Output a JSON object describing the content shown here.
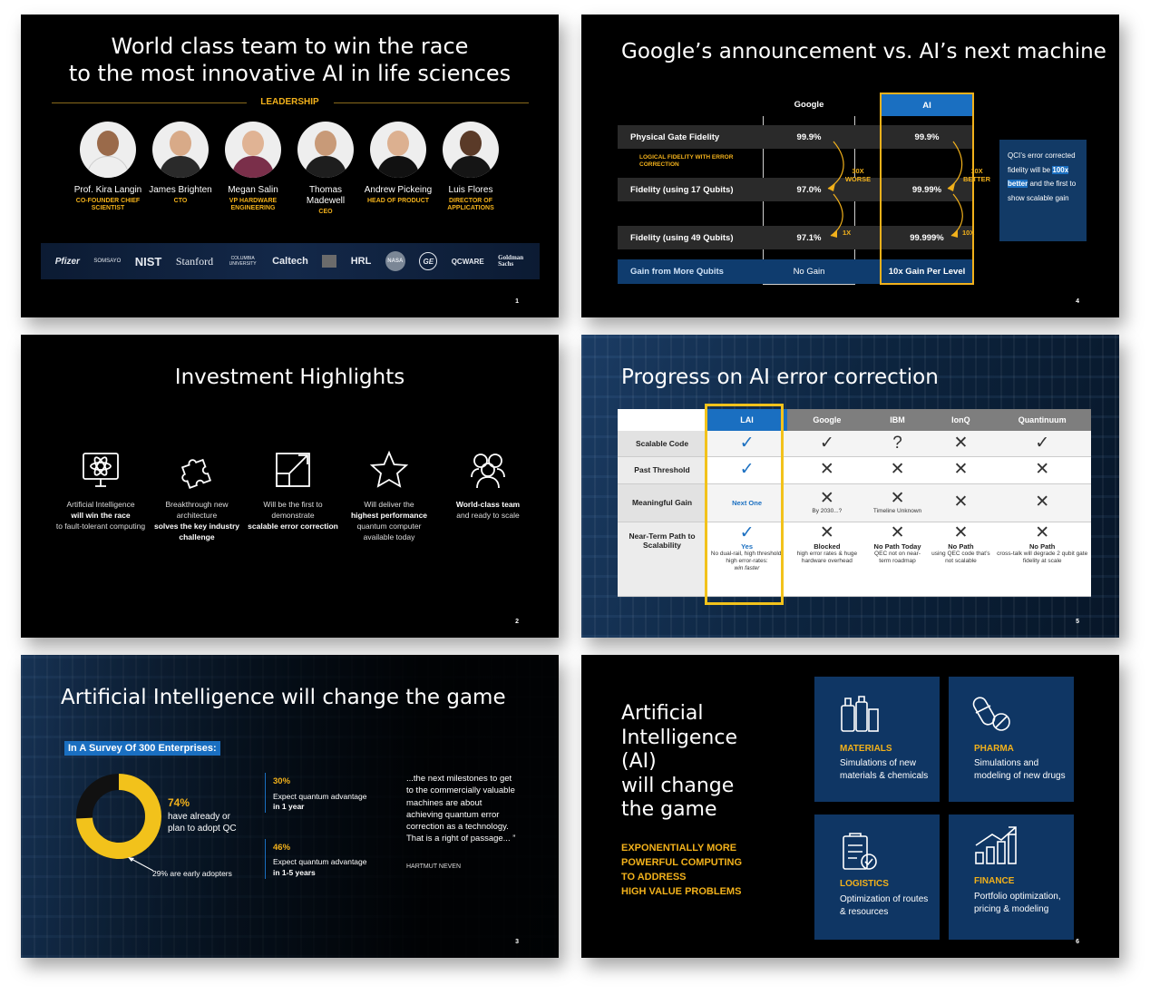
{
  "slide1": {
    "title_line1": "World class team to win the race",
    "title_line2": "to the most innovative AI in life sciences",
    "section": "LEADERSHIP",
    "people": [
      {
        "name": "Prof. Kira Langin",
        "role": "CO-FOUNDER CHIEF SCIENTIST"
      },
      {
        "name": "James Brighten",
        "role": "CTO"
      },
      {
        "name": "Megan Salin",
        "role": "VP HARDWARE ENGINEERING"
      },
      {
        "name": "Thomas Madewell",
        "role": "CEO"
      },
      {
        "name": "Andrew Pickeing",
        "role": "HEAD OF PRODUCT"
      },
      {
        "name": "Luis Flores",
        "role": "DIRECTOR OF APPLICATIONS"
      }
    ],
    "logos": [
      "Pfizer",
      "SOMSAYO",
      "NIST",
      "Stanford",
      "COLUMBIA UNIVERSITY",
      "Caltech",
      "HRL",
      "NASA",
      "GE",
      "QCWARE",
      "Goldman Sachs"
    ],
    "page": "1"
  },
  "slide4": {
    "title": "Google’s announcement vs. AI’s next machine",
    "col_google": "Google",
    "col_ai": "AI",
    "rows": [
      {
        "label": "Physical Gate Fidelity",
        "google": "99.9%",
        "ai": "99.9%"
      },
      {
        "label": "Fidelity (using 17 Qubits)",
        "google": "97.0%",
        "ai": "99.99%"
      },
      {
        "label": "Fidelity (using 49 Qubits)",
        "google": "97.1%",
        "ai": "99.999%"
      }
    ],
    "logical_note": "LOGICAL FIDELITY WITH ERROR CORRECTION",
    "google_arrow1": "30X WORSE",
    "google_arrow2": "1X",
    "ai_arrow1": "10X BETTER",
    "ai_arrow2": "10X",
    "gain_label": "Gain from More Qubits",
    "gain_google": "No Gain",
    "gain_ai": "10x Gain Per Level",
    "callout_pre": "QCI’s error corrected fidelity will be",
    "callout_highlight": "100x better",
    "callout_post": "and the first to show scalable gain",
    "page": "4"
  },
  "slide2": {
    "title": "Investment Highlights",
    "items": [
      {
        "pre": "Artificial Intelligence",
        "bold": "will win the race",
        "post": "to fault-tolerant computing"
      },
      {
        "pre": "Breakthrough new architecture",
        "bold": "solves the key industry challenge",
        "post": ""
      },
      {
        "pre": "Will be the first to demonstrate",
        "bold": "scalable error correction",
        "post": ""
      },
      {
        "pre": "Will deliver the",
        "bold": "highest performance",
        "post": "quantum computer available today"
      },
      {
        "pre": "",
        "bold": "World-class team",
        "post": "and ready to scale"
      }
    ],
    "page": "2"
  },
  "slide5": {
    "title": "Progress on AI error correction",
    "columns": [
      "LAI",
      "Google",
      "IBM",
      "IonQ",
      "Quantinuum"
    ],
    "rows": [
      {
        "label": "Scalable Code",
        "cells": [
          {
            "mark": "✓"
          },
          {
            "mark": "✓"
          },
          {
            "mark": "?"
          },
          {
            "mark": "✕"
          },
          {
            "mark": "✓"
          }
        ]
      },
      {
        "label": "Past Threshold",
        "cells": [
          {
            "mark": "✓"
          },
          {
            "mark": "✕"
          },
          {
            "mark": "✕"
          },
          {
            "mark": "✕"
          },
          {
            "mark": "✕"
          }
        ]
      },
      {
        "label": "Meaningful Gain",
        "cells": [
          {
            "text": "Next One"
          },
          {
            "mark": "✕",
            "note": "By 2030...?"
          },
          {
            "mark": "✕",
            "note": "Timeline Unknown"
          },
          {
            "mark": "✕"
          },
          {
            "mark": "✕"
          }
        ]
      },
      {
        "label": "Near-Term Path to Scalability",
        "cells": [
          {
            "mark": "✓",
            "head": "Yes",
            "note": "No dual-rail, high threshold, high error-rates:",
            "italic": "win faster"
          },
          {
            "mark": "✕",
            "head": "Blocked",
            "note": "high error rates & huge hardware overhead"
          },
          {
            "mark": "✕",
            "head": "No Path Today",
            "note": "QEC not on near-term roadmap"
          },
          {
            "mark": "✕",
            "head": "No Path",
            "note": "using QEC code that’s not scalable"
          },
          {
            "mark": "✕",
            "head": "No Path",
            "note": "cross-talk will degrade 2 qubit gate fidelity at scale"
          }
        ]
      }
    ],
    "page": "5"
  },
  "slide3": {
    "title": "Artificial Intelligence will change the game",
    "survey": "In A Survey Of 300 Enterprises:",
    "donut_pct": "74%",
    "donut_value": 74,
    "donut_text": "have already or plan to adopt QC",
    "early": "29% are early adopters",
    "stat1_pct": "30%",
    "stat1_text": "Expect quantum advantage",
    "stat1_bold": "in 1 year",
    "stat2_pct": "46%",
    "stat2_text": "Expect quantum advantage",
    "stat2_bold": "in 1-5 years",
    "quote": "...the next milestones to get to the commercially valuable machines are about achieving quantum error correction as a technology. That is a right of passage... ”",
    "author": "HARTMUT NEVEN",
    "page": "3"
  },
  "slide6": {
    "title_lines": [
      "Artificial",
      "Intelligence",
      "(AI)",
      "will change",
      "the game"
    ],
    "tagline_lines": [
      "EXPONENTIALLY MORE",
      "POWERFUL COMPUTING",
      "TO ADDRESS",
      "HIGH VALUE PROBLEMS"
    ],
    "tiles": [
      {
        "title": "MATERIALS",
        "desc": "Simulations of new materials & chemicals"
      },
      {
        "title": "PHARMA",
        "desc": "Simulations and modeling of new drugs"
      },
      {
        "title": "LOGISTICS",
        "desc": "Optimization of routes & resources"
      },
      {
        "title": "FINANCE",
        "desc": "Portfolio optimization, pricing & modeling"
      }
    ],
    "page": "6"
  },
  "colors": {
    "accent": "#f2b11b",
    "blue": "#1a6fc1",
    "navy": "#0f3664"
  }
}
